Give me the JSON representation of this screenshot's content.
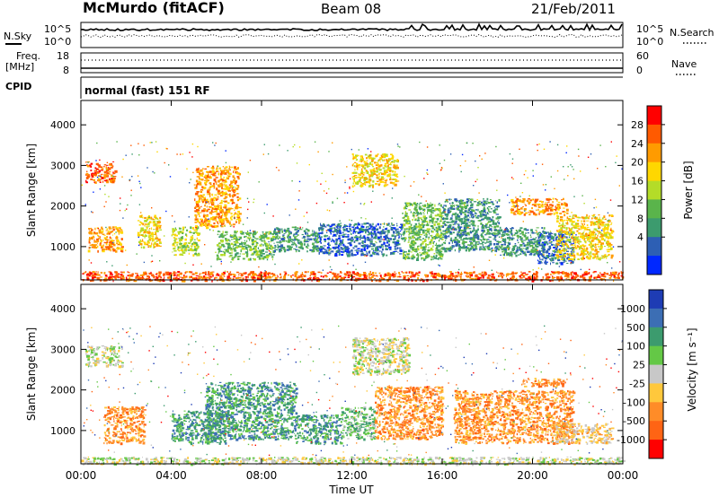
{
  "header": {
    "title": "McMurdo (fitACF)",
    "beam": "Beam 08",
    "date": "21/Feb/2011",
    "subtitle": "normal (fast) 151 RF"
  },
  "status_panels": {
    "nsky_label": "N.Sky",
    "nsearch_label": "N.Search",
    "freq_label_1": "Freq.",
    "freq_label_2": "[MHz]",
    "nave_label": "Nave",
    "cpid_label": "CPID",
    "noise_ticks": [
      "10^5",
      "10^0"
    ],
    "freq_ticks": [
      "18",
      "8"
    ],
    "nave_ticks": [
      "60",
      "0"
    ]
  },
  "chart_data": [
    {
      "type": "heatmap",
      "title": "",
      "xlabel": "",
      "ylabel": "Slant Range [km]",
      "x_ticks": [
        "00:00",
        "04:00",
        "08:00",
        "12:00",
        "16:00",
        "20:00",
        "00:00"
      ],
      "xlim_hours": [
        0,
        24
      ],
      "ylim": [
        180,
        4600
      ],
      "y_ticks": [
        1000,
        2000,
        3000,
        4000
      ],
      "colorbar": {
        "label": "Power [dB]",
        "ticks": [
          "28",
          "24",
          "20",
          "16",
          "12",
          "8",
          "4"
        ],
        "colors": [
          "#ff0000",
          "#ff5a00",
          "#ff9b00",
          "#ffd700",
          "#b4dc28",
          "#5ab44b",
          "#3c9b6e",
          "#2d5fb4",
          "#0028ff"
        ]
      },
      "regions": [
        {
          "t0": 0.2,
          "t1": 1.5,
          "r0": 2600,
          "r1": 3100,
          "level": 1
        },
        {
          "t0": 0.3,
          "t1": 1.8,
          "r0": 900,
          "r1": 1500,
          "level": 2
        },
        {
          "t0": 2.5,
          "t1": 3.5,
          "r0": 1000,
          "r1": 1800,
          "level": 3
        },
        {
          "t0": 4.0,
          "t1": 5.2,
          "r0": 800,
          "r1": 1500,
          "level": 4
        },
        {
          "t0": 5.0,
          "t1": 7.0,
          "r0": 1500,
          "r1": 3000,
          "level": 2
        },
        {
          "t0": 6.0,
          "t1": 8.5,
          "r0": 700,
          "r1": 1400,
          "level": 5
        },
        {
          "t0": 8.5,
          "t1": 10.5,
          "r0": 900,
          "r1": 1500,
          "level": 6
        },
        {
          "t0": 10.5,
          "t1": 14.2,
          "r0": 800,
          "r1": 1600,
          "level": 7
        },
        {
          "t0": 12.0,
          "t1": 14.0,
          "r0": 2500,
          "r1": 3300,
          "level": 3
        },
        {
          "t0": 14.2,
          "t1": 16.0,
          "r0": 700,
          "r1": 2100,
          "level": 5
        },
        {
          "t0": 16.0,
          "t1": 18.5,
          "r0": 900,
          "r1": 2200,
          "level": 6
        },
        {
          "t0": 18.5,
          "t1": 20.5,
          "r0": 800,
          "r1": 1500,
          "level": 6
        },
        {
          "t0": 20.2,
          "t1": 21.8,
          "r0": 600,
          "r1": 1400,
          "level": 7
        },
        {
          "t0": 21.0,
          "t1": 23.5,
          "r0": 700,
          "r1": 1800,
          "level": 3
        },
        {
          "t0": 19.0,
          "t1": 21.5,
          "r0": 1800,
          "r1": 2200,
          "level": 2
        },
        {
          "t0": 0.0,
          "t1": 24.0,
          "r0": 180,
          "r1": 400,
          "level": 1
        }
      ]
    },
    {
      "type": "heatmap",
      "title": "",
      "xlabel": "Time UT",
      "ylabel": "Slant Range [km]",
      "x_ticks": [
        "00:00",
        "04:00",
        "08:00",
        "12:00",
        "16:00",
        "20:00",
        "00:00"
      ],
      "xlim_hours": [
        0,
        24
      ],
      "ylim": [
        180,
        4600
      ],
      "y_ticks": [
        1000,
        2000,
        3000,
        4000
      ],
      "colorbar": {
        "label": "Velocity [m s⁻¹]",
        "ticks": [
          "1000",
          "500",
          "100",
          "25",
          "-25",
          "-100",
          "-500",
          "-1000"
        ],
        "colors": [
          "#1e3cb4",
          "#3c6eb4",
          "#3c9b6e",
          "#64c846",
          "#c8c8c8",
          "#ffc83c",
          "#ff8c28",
          "#ff6414",
          "#ff0000"
        ]
      },
      "regions": [
        {
          "t0": 0.2,
          "t1": 1.8,
          "r0": 2600,
          "r1": 3100,
          "level": 4
        },
        {
          "t0": 1.0,
          "t1": 2.8,
          "r0": 700,
          "r1": 1600,
          "level": 6
        },
        {
          "t0": 4.0,
          "t1": 6.5,
          "r0": 700,
          "r1": 1500,
          "level": 2
        },
        {
          "t0": 5.5,
          "t1": 9.5,
          "r0": 800,
          "r1": 2200,
          "level": 2
        },
        {
          "t0": 9.5,
          "t1": 11.5,
          "r0": 700,
          "r1": 1400,
          "level": 2
        },
        {
          "t0": 11.5,
          "t1": 13.0,
          "r0": 800,
          "r1": 1600,
          "level": 3
        },
        {
          "t0": 13.0,
          "t1": 16.0,
          "r0": 800,
          "r1": 2100,
          "level": 6
        },
        {
          "t0": 16.5,
          "t1": 21.8,
          "r0": 700,
          "r1": 2000,
          "level": 6
        },
        {
          "t0": 19.5,
          "t1": 21.5,
          "r0": 2100,
          "r1": 2300,
          "level": 6
        },
        {
          "t0": 12.0,
          "t1": 14.5,
          "r0": 2400,
          "r1": 3300,
          "level": 4
        },
        {
          "t0": 21.0,
          "t1": 23.5,
          "r0": 700,
          "r1": 1200,
          "level": 5
        },
        {
          "t0": 0.0,
          "t1": 24.0,
          "r0": 180,
          "r1": 360,
          "level": 4
        }
      ]
    }
  ]
}
